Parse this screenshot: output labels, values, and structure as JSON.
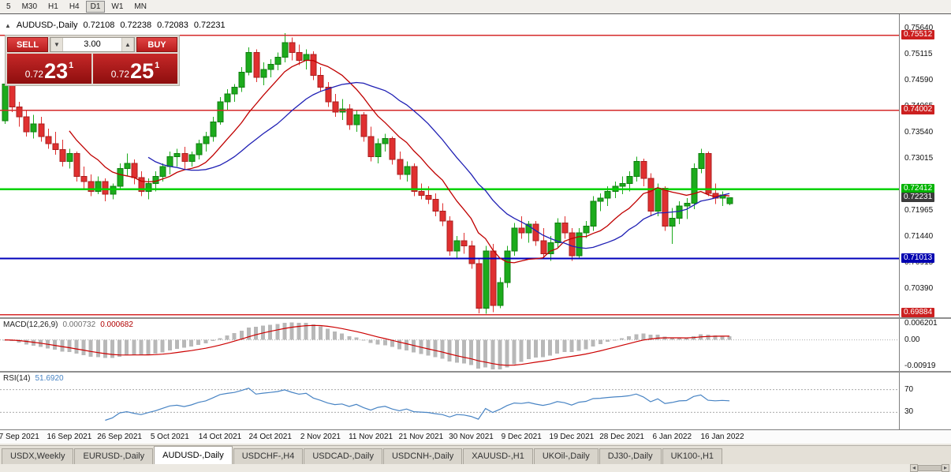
{
  "toolbar": {
    "timeframes": [
      "5",
      "M30",
      "H1",
      "H4",
      "D1",
      "W1",
      "MN"
    ],
    "active_timeframe": "D1"
  },
  "chart_header": {
    "symbol": "AUDUSD-,Daily",
    "open": "0.72108",
    "high": "0.72238",
    "low": "0.72083",
    "close": "0.72231"
  },
  "trade_panel": {
    "sell_label": "SELL",
    "buy_label": "BUY",
    "lot_size": "3.00",
    "sell_price_small": "0.72",
    "sell_price_big": "23",
    "sell_price_sup": "1",
    "buy_price_small": "0.72",
    "buy_price_big": "25",
    "buy_price_sup": "1"
  },
  "icons": {
    "symbol_marker": "▲",
    "spinner_down": "▼",
    "spinner_up": "▲",
    "scroll_left": "◂",
    "scroll_right": "▸"
  },
  "price_scale": {
    "plain": [
      {
        "text": "0.75640",
        "v": 0.7564
      },
      {
        "text": "0.75115",
        "v": 0.75115
      },
      {
        "text": "0.74590",
        "v": 0.7459
      },
      {
        "text": "0.74065",
        "v": 0.74065
      },
      {
        "text": "0.73540",
        "v": 0.7354
      },
      {
        "text": "0.73015",
        "v": 0.73015
      },
      {
        "text": "0.71965",
        "v": 0.71965
      },
      {
        "text": "0.71440",
        "v": 0.7144
      },
      {
        "text": "0.70915",
        "v": 0.70915
      },
      {
        "text": "0.70390",
        "v": 0.7039
      }
    ],
    "tags": [
      {
        "text": "0.75512",
        "v": 0.75512,
        "bg": "#cc2020"
      },
      {
        "text": "0.74002",
        "v": 0.74002,
        "bg": "#cc2020"
      },
      {
        "text": "0.72412",
        "v": 0.72412,
        "bg": "#00b400"
      },
      {
        "text": "0.72231",
        "v": 0.72231,
        "bg": "#3c3c3c"
      },
      {
        "text": "0.71013",
        "v": 0.71013,
        "bg": "#0000b0"
      },
      {
        "text": "0.69884",
        "v": 0.69884,
        "bg": "#cc2020"
      }
    ]
  },
  "macd_panel": {
    "label": "MACD(12,26,9)",
    "value1": "0.000732",
    "value2": "0.000682",
    "scale": [
      {
        "text": "0.006201",
        "v": 0.006201
      },
      {
        "text": "0.00",
        "v": 0
      },
      {
        "text": "-0.00919",
        "v": -0.00919
      }
    ]
  },
  "rsi_panel": {
    "label": "RSI(14)",
    "value": "51.6920",
    "levels": [
      70,
      30
    ],
    "scale": [
      {
        "text": "70",
        "v": 70
      },
      {
        "text": "30",
        "v": 30
      }
    ]
  },
  "tabs": [
    "USDX,Weekly",
    "EURUSD-,Daily",
    "AUDUSD-,Daily",
    "USDCHF-,H4",
    "USDCAD-,Daily",
    "USDCNH-,Daily",
    "XAUUSD-,H1",
    "UKOil-,Daily",
    "DJ30-,Daily",
    "UK100-,H1"
  ],
  "active_tab": "AUDUSD-,Daily",
  "chart_data": {
    "type": "candlestick",
    "symbol": "AUDUSD",
    "timeframe": "Daily",
    "price_range": [
      0.6982,
      0.7593
    ],
    "colors": {
      "up": "#1cab1c",
      "up_border": "#0f7d0f",
      "down": "#e03030",
      "down_border": "#a81f1f",
      "macd_hist": "#b8b8b8",
      "macd_signal": "#cc0000",
      "rsi_line": "#4884c4",
      "level_dotted": "#aaaaaa"
    },
    "hlines": [
      {
        "price": 0.75512,
        "color": "#d42a2a",
        "width": 1.5
      },
      {
        "price": 0.74002,
        "color": "#d42a2a",
        "width": 1.5
      },
      {
        "price": 0.72412,
        "color": "#00d200",
        "width": 2.5
      },
      {
        "price": 0.71013,
        "color": "#0000bb",
        "width": 2
      },
      {
        "price": 0.69884,
        "color": "#d42a2a",
        "width": 1.5
      }
    ],
    "overlays": [
      {
        "name": "ma-fast",
        "type": "sma",
        "period": 10,
        "color": "#c00000"
      },
      {
        "name": "ma-slow",
        "type": "sma",
        "period": 21,
        "color": "#1f1fb4"
      }
    ],
    "indicators": {
      "macd": {
        "fast": 12,
        "slow": 26,
        "signal": 9,
        "range": [
          -0.00919,
          0.006201
        ]
      },
      "rsi": {
        "period": 14,
        "range": [
          0,
          100
        ]
      }
    },
    "x_axis": {
      "dates": [
        "7 Sep 2021",
        "16 Sep 2021",
        "26 Sep 2021",
        "5 Oct 2021",
        "14 Oct 2021",
        "24 Oct 2021",
        "2 Nov 2021",
        "11 Nov 2021",
        "21 Nov 2021",
        "30 Nov 2021",
        "9 Dec 2021",
        "19 Dec 2021",
        "28 Dec 2021",
        "6 Jan 2022",
        "16 Jan 2022"
      ],
      "tick_indices": [
        2,
        9,
        16,
        23,
        30,
        37,
        44,
        51,
        58,
        65,
        72,
        79,
        86,
        93,
        100
      ]
    },
    "candles": [
      [
        0.7378,
        0.7462,
        0.7372,
        0.7452
      ],
      [
        0.7452,
        0.7458,
        0.7396,
        0.7406
      ],
      [
        0.7406,
        0.7416,
        0.7366,
        0.7386
      ],
      [
        0.7386,
        0.74,
        0.7346,
        0.7356
      ],
      [
        0.7356,
        0.739,
        0.7342,
        0.7372
      ],
      [
        0.7372,
        0.7386,
        0.7336,
        0.7346
      ],
      [
        0.7346,
        0.7362,
        0.7322,
        0.7332
      ],
      [
        0.7332,
        0.7356,
        0.731,
        0.732
      ],
      [
        0.732,
        0.734,
        0.7286,
        0.7296
      ],
      [
        0.7296,
        0.7322,
        0.7282,
        0.7312
      ],
      [
        0.7312,
        0.7316,
        0.7256,
        0.7266
      ],
      [
        0.7266,
        0.7286,
        0.7242,
        0.7256
      ],
      [
        0.7256,
        0.727,
        0.7226,
        0.7236
      ],
      [
        0.7236,
        0.7266,
        0.723,
        0.7256
      ],
      [
        0.7256,
        0.7262,
        0.7216,
        0.723
      ],
      [
        0.723,
        0.7252,
        0.722,
        0.7246
      ],
      [
        0.7246,
        0.7292,
        0.724,
        0.7282
      ],
      [
        0.7282,
        0.7312,
        0.7266,
        0.7292
      ],
      [
        0.7292,
        0.73,
        0.725,
        0.7264
      ],
      [
        0.7264,
        0.7276,
        0.7226,
        0.7236
      ],
      [
        0.7236,
        0.7262,
        0.722,
        0.7252
      ],
      [
        0.7252,
        0.7276,
        0.7236,
        0.7266
      ],
      [
        0.7266,
        0.7292,
        0.7256,
        0.7286
      ],
      [
        0.7286,
        0.7316,
        0.727,
        0.7306
      ],
      [
        0.7306,
        0.7322,
        0.7286,
        0.7312
      ],
      [
        0.7312,
        0.7326,
        0.728,
        0.7296
      ],
      [
        0.7296,
        0.7316,
        0.7286,
        0.731
      ],
      [
        0.731,
        0.734,
        0.73,
        0.7332
      ],
      [
        0.7332,
        0.7356,
        0.7316,
        0.7346
      ],
      [
        0.7346,
        0.7386,
        0.7336,
        0.7376
      ],
      [
        0.7376,
        0.7426,
        0.737,
        0.7416
      ],
      [
        0.7416,
        0.7442,
        0.74,
        0.7432
      ],
      [
        0.7432,
        0.7452,
        0.7416,
        0.7446
      ],
      [
        0.7446,
        0.7486,
        0.7436,
        0.7476
      ],
      [
        0.7476,
        0.7526,
        0.747,
        0.7516
      ],
      [
        0.7516,
        0.7522,
        0.7456,
        0.7466
      ],
      [
        0.7466,
        0.7496,
        0.745,
        0.7482
      ],
      [
        0.7482,
        0.7502,
        0.7466,
        0.7492
      ],
      [
        0.7492,
        0.7516,
        0.748,
        0.7506
      ],
      [
        0.7506,
        0.7555,
        0.7496,
        0.7536
      ],
      [
        0.7536,
        0.7546,
        0.75,
        0.7516
      ],
      [
        0.7516,
        0.7532,
        0.749,
        0.75
      ],
      [
        0.75,
        0.7522,
        0.7482,
        0.7512
      ],
      [
        0.7512,
        0.7518,
        0.746,
        0.747
      ],
      [
        0.747,
        0.7486,
        0.7436,
        0.7446
      ],
      [
        0.7446,
        0.7456,
        0.7406,
        0.7416
      ],
      [
        0.7416,
        0.7432,
        0.7386,
        0.7396
      ],
      [
        0.7396,
        0.7422,
        0.738,
        0.7402
      ],
      [
        0.7402,
        0.7412,
        0.736,
        0.737
      ],
      [
        0.737,
        0.74,
        0.7356,
        0.739
      ],
      [
        0.739,
        0.7396,
        0.7336,
        0.7346
      ],
      [
        0.7346,
        0.7366,
        0.7296,
        0.7306
      ],
      [
        0.7306,
        0.7342,
        0.7292,
        0.7332
      ],
      [
        0.7332,
        0.7352,
        0.7316,
        0.7342
      ],
      [
        0.7342,
        0.7346,
        0.729,
        0.73
      ],
      [
        0.73,
        0.7316,
        0.726,
        0.727
      ],
      [
        0.727,
        0.7296,
        0.7256,
        0.7286
      ],
      [
        0.7286,
        0.7292,
        0.7226,
        0.7236
      ],
      [
        0.7236,
        0.7252,
        0.722,
        0.7228
      ],
      [
        0.7228,
        0.7246,
        0.721,
        0.722
      ],
      [
        0.722,
        0.7232,
        0.7186,
        0.7196
      ],
      [
        0.7196,
        0.7212,
        0.7166,
        0.7176
      ],
      [
        0.7176,
        0.7186,
        0.7106,
        0.7116
      ],
      [
        0.7116,
        0.7146,
        0.71,
        0.7136
      ],
      [
        0.7136,
        0.7152,
        0.711,
        0.7126
      ],
      [
        0.7126,
        0.7136,
        0.708,
        0.709
      ],
      [
        0.709,
        0.71,
        0.699,
        0.7
      ],
      [
        0.7,
        0.7126,
        0.6989,
        0.7116
      ],
      [
        0.7116,
        0.713,
        0.6992,
        0.7006
      ],
      [
        0.7006,
        0.7062,
        0.7,
        0.7052
      ],
      [
        0.7052,
        0.7126,
        0.7042,
        0.7116
      ],
      [
        0.7116,
        0.7172,
        0.7106,
        0.7162
      ],
      [
        0.7162,
        0.7186,
        0.714,
        0.7152
      ],
      [
        0.7152,
        0.7176,
        0.7132,
        0.717
      ],
      [
        0.717,
        0.7176,
        0.7126,
        0.7136
      ],
      [
        0.7136,
        0.7162,
        0.71,
        0.711
      ],
      [
        0.711,
        0.7146,
        0.7096,
        0.7132
      ],
      [
        0.7132,
        0.7182,
        0.7122,
        0.7172
      ],
      [
        0.7172,
        0.7186,
        0.714,
        0.7152
      ],
      [
        0.7152,
        0.7162,
        0.7096,
        0.7106
      ],
      [
        0.7106,
        0.7162,
        0.71,
        0.7152
      ],
      [
        0.7152,
        0.7176,
        0.7142,
        0.7166
      ],
      [
        0.7166,
        0.7226,
        0.7156,
        0.7216
      ],
      [
        0.7216,
        0.7232,
        0.7196,
        0.7222
      ],
      [
        0.7222,
        0.7246,
        0.7206,
        0.7236
      ],
      [
        0.7236,
        0.7256,
        0.7222,
        0.7246
      ],
      [
        0.7246,
        0.7266,
        0.723,
        0.7252
      ],
      [
        0.7252,
        0.7276,
        0.7236,
        0.7266
      ],
      [
        0.7266,
        0.7306,
        0.7256,
        0.7296
      ],
      [
        0.7296,
        0.7302,
        0.7246,
        0.7262
      ],
      [
        0.7262,
        0.7272,
        0.7186,
        0.7196
      ],
      [
        0.7196,
        0.7252,
        0.7186,
        0.7242
      ],
      [
        0.7242,
        0.7246,
        0.7156,
        0.7166
      ],
      [
        0.7166,
        0.7202,
        0.713,
        0.7182
      ],
      [
        0.7182,
        0.7216,
        0.717,
        0.7206
      ],
      [
        0.7206,
        0.7222,
        0.718,
        0.7212
      ],
      [
        0.7212,
        0.7292,
        0.72,
        0.7282
      ],
      [
        0.7282,
        0.7322,
        0.7272,
        0.7312
      ],
      [
        0.7312,
        0.7316,
        0.7226,
        0.7232
      ],
      [
        0.7232,
        0.7252,
        0.721,
        0.7222
      ],
      [
        0.7222,
        0.7236,
        0.7206,
        0.7229
      ],
      [
        0.72108,
        0.72238,
        0.72083,
        0.72231
      ]
    ]
  }
}
